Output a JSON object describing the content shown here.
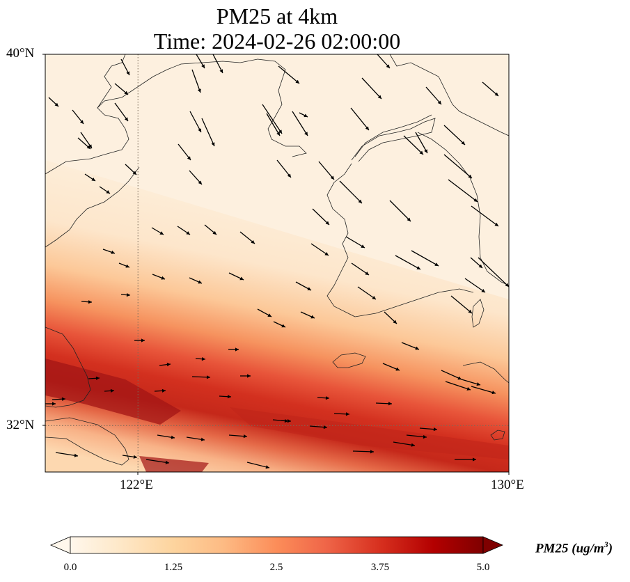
{
  "title": {
    "line1": "PM25 at 4km",
    "line2": "Time: 2024-02-26 02:00:00"
  },
  "axes": {
    "lat_labels": [
      "40°N",
      "32°N"
    ],
    "lon_labels": [
      "122°E",
      "130°E"
    ],
    "lon_range": [
      120,
      130
    ],
    "lat_range": [
      31,
      40
    ],
    "gridlines": {
      "lon": [
        122
      ],
      "lat": [
        32
      ],
      "style": "dotted"
    }
  },
  "colorbar": {
    "label_prefix": "PM25 (ug/m",
    "label_exp": "3",
    "label_suffix": ")",
    "ticks": [
      "0.0",
      "1.25",
      "2.5",
      "3.75",
      "5.0"
    ],
    "range": [
      0,
      5
    ],
    "colormap": "OrRd",
    "extend": "both",
    "colors": [
      "#fff7ec",
      "#fee8c8",
      "#fdd49e",
      "#fdbb84",
      "#fc8d59",
      "#ef6548",
      "#d7301f",
      "#b30000",
      "#7f0000"
    ]
  },
  "colors": {
    "coastline": "#222222",
    "vector": "#000000",
    "gridline": "#7a6a5a"
  },
  "chart_data": {
    "type": "heatmap",
    "variable": "PM25",
    "units": "ug/m^3",
    "overlay": "wind-vectors",
    "plume_band": "high concentration band oriented WNW–ESE across the southern part of the domain, peaking near 31.5°N–32.5°N",
    "wind_direction": "predominantly from WNW/NW toward ESE/SE"
  }
}
